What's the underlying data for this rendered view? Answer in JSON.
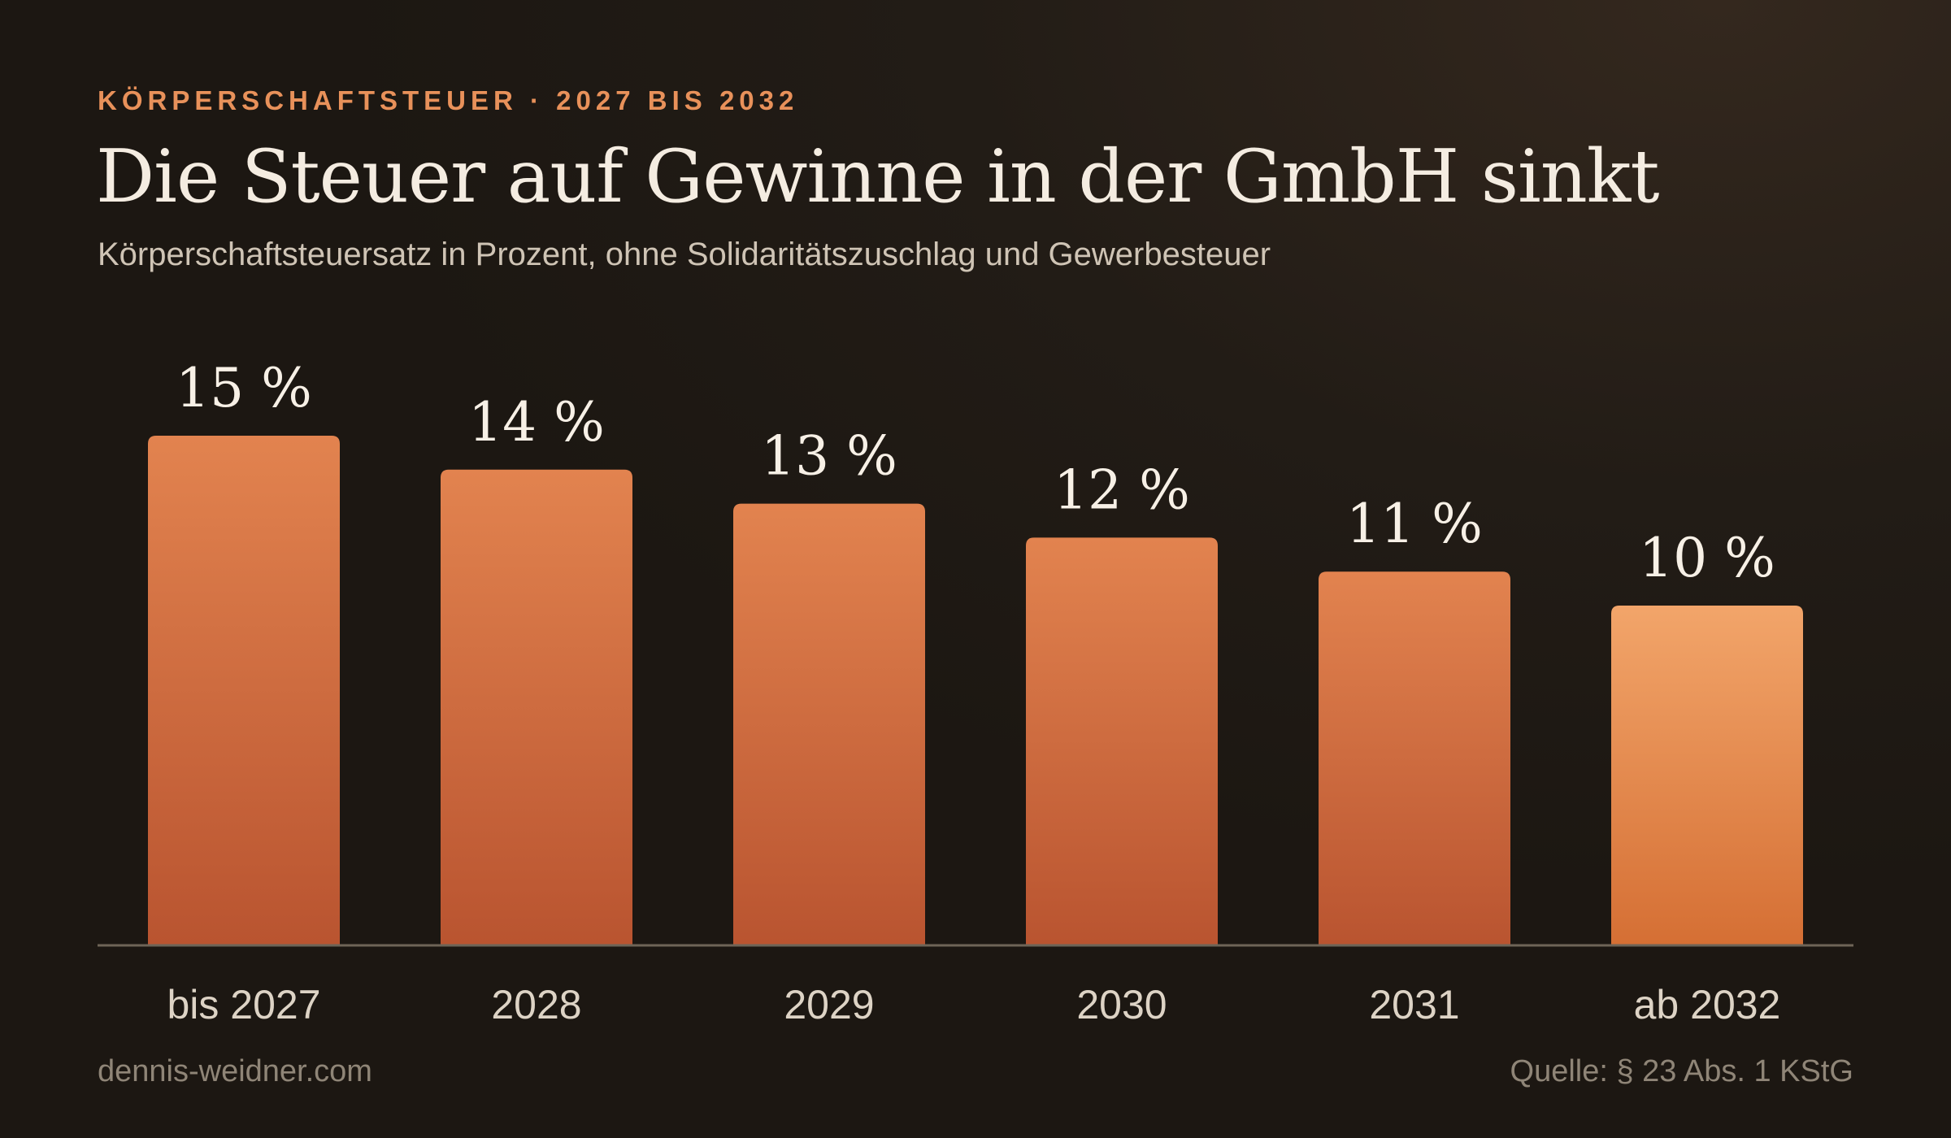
{
  "header": {
    "eyebrow": "KÖRPERSCHAFTSTEUER · 2027 BIS 2032",
    "title": "Die Steuer auf Gewinne in der GmbH sinkt",
    "subtitle": "Körperschaftsteuersatz in Prozent, ohne Solidaritätszuschlag und Gewerbesteuer"
  },
  "footer": {
    "site": "dennis-weidner.com",
    "source": "Quelle: § 23 Abs. 1 KStG"
  },
  "chart_data": {
    "type": "bar",
    "title": "Die Steuer auf Gewinne in der GmbH sinkt",
    "subtitle": "Körperschaftsteuersatz in Prozent, ohne Solidaritätszuschlag und Gewerbesteuer",
    "categories": [
      "bis 2027",
      "2028",
      "2029",
      "2030",
      "2031",
      "ab 2032"
    ],
    "values": [
      15,
      14,
      13,
      12,
      11,
      10
    ],
    "labels": [
      "15 %",
      "14 %",
      "13 %",
      "12 %",
      "11 %",
      "10 %"
    ],
    "unit": "%",
    "xlabel": "",
    "ylabel": "",
    "ylim": [
      0,
      15
    ],
    "grid": false,
    "legend": "none",
    "highlight_index": 5
  },
  "colors": {
    "bar_top": "#e2834f",
    "bar_bottom": "#b95430",
    "highlight_top": "#f2a56a",
    "highlight_bottom": "#d56f34",
    "accent": "#e8915a",
    "baseline": "#6e6457",
    "value_label": "#f7f0e6",
    "category_label": "#ddd3c5"
  }
}
